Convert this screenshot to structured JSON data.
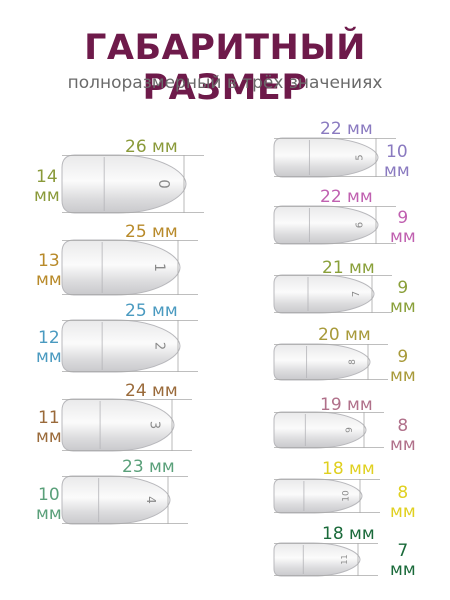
{
  "header": {
    "title": "ГАБАРИТНЫЙ РАЗМЕР",
    "subtitle": "полноразмерный в трёх значениях"
  },
  "unit": "мм",
  "left_column": [
    {
      "number": "0",
      "length": "26 мм",
      "width_value": "14",
      "width_unit": "мм",
      "color": "#8a9a3a"
    },
    {
      "number": "1",
      "length": "25 мм",
      "width_value": "13",
      "width_unit": "мм",
      "color": "#b88a2a"
    },
    {
      "number": "2",
      "length": "25 мм",
      "width_value": "12",
      "width_unit": "мм",
      "color": "#4a9ac0"
    },
    {
      "number": "3",
      "length": "24 мм",
      "width_value": "11",
      "width_unit": "мм",
      "color": "#9a6a3a"
    },
    {
      "number": "4",
      "length": "23 мм",
      "width_value": "10",
      "width_unit": "мм",
      "color": "#5aa07a"
    }
  ],
  "right_column": [
    {
      "number": "5",
      "length": "22 мм",
      "width_value": "10",
      "width_unit": "мм",
      "color": "#8a7ac0"
    },
    {
      "number": "6",
      "length": "22 мм",
      "width_value": "9",
      "width_unit": "мм",
      "color": "#c060b0"
    },
    {
      "number": "7",
      "length": "21 мм",
      "width_value": "9",
      "width_unit": "мм",
      "color": "#8aa03a"
    },
    {
      "number": "8",
      "length": "20 мм",
      "width_value": "9",
      "width_unit": "мм",
      "color": "#a89a3a"
    },
    {
      "number": "9",
      "length": "19 мм",
      "width_value": "8",
      "width_unit": "мм",
      "color": "#b0708a"
    },
    {
      "number": "10",
      "length": "18 мм",
      "width_value": "8",
      "width_unit": "мм",
      "color": "#e0d020"
    },
    {
      "number": "11",
      "length": "18 мм",
      "width_value": "7",
      "width_unit": "мм",
      "color": "#1a6a3a"
    }
  ]
}
